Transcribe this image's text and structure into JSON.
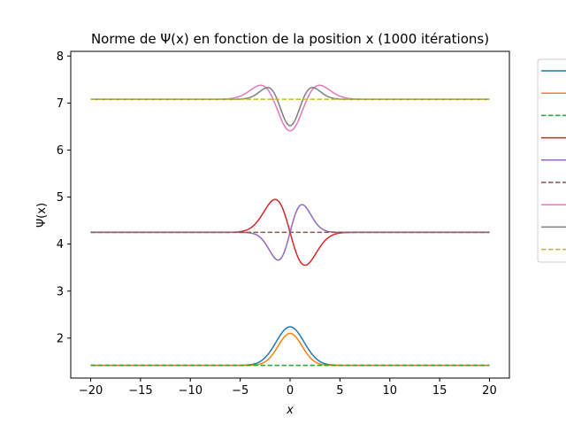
{
  "chart_data": {
    "type": "line",
    "title": "Norme de Ψ(x) en fonction de la position x (1000 itérations)",
    "xlabel": "x",
    "ylabel": "Ψ(x)",
    "xlim": [
      -22,
      22
    ],
    "ylim": [
      1.15,
      8.1
    ],
    "xticks": [
      -20,
      -15,
      -10,
      -5,
      0,
      5,
      10,
      15,
      20
    ],
    "xtick_labels": [
      "−20",
      "−15",
      "−10",
      "−5",
      "0",
      "5",
      "10",
      "15",
      "20"
    ],
    "yticks": [
      2,
      3,
      4,
      5,
      6,
      7,
      8
    ],
    "ytick_labels": [
      "2",
      "3",
      "4",
      "5",
      "6",
      "7",
      "8"
    ],
    "grid": false,
    "legend_placement": "outside-right",
    "x_domain": [
      -20,
      20
    ],
    "series": [
      {
        "color": "#1f77b4",
        "style": "solid",
        "baseline": 1.42,
        "amp": 0.82,
        "sigma": 1.4,
        "form": "gauss"
      },
      {
        "color": "#ff7f0e",
        "style": "solid",
        "baseline": 1.42,
        "amp": 0.68,
        "sigma": 1.2,
        "form": "gauss"
      },
      {
        "color": "#2ca02c",
        "style": "dashed",
        "baseline": 1.42,
        "amp": 0.0,
        "sigma": 1.0,
        "form": "flat"
      },
      {
        "color": "#d62728",
        "style": "solid",
        "baseline": 4.25,
        "amp": -0.7,
        "sigma": 1.5,
        "form": "odd"
      },
      {
        "color": "#9467bd",
        "style": "solid",
        "baseline": 4.25,
        "amp": 0.59,
        "sigma": 1.2,
        "form": "odd"
      },
      {
        "color": "#8c564b",
        "style": "dashed",
        "baseline": 4.25,
        "amp": 0.0,
        "sigma": 1.0,
        "form": "flat"
      },
      {
        "color": "#e377c2",
        "style": "solid",
        "baseline": 7.08,
        "amp": 0.67,
        "sigma": 1.7,
        "form": "gauss2"
      },
      {
        "color": "#7f7f7f",
        "style": "solid",
        "baseline": 7.08,
        "amp": 0.56,
        "sigma": 1.3,
        "form": "gauss2"
      },
      {
        "color": "#bcbd22",
        "style": "dashed",
        "baseline": 7.08,
        "amp": 0.0,
        "sigma": 1.0,
        "form": "flat"
      }
    ]
  }
}
